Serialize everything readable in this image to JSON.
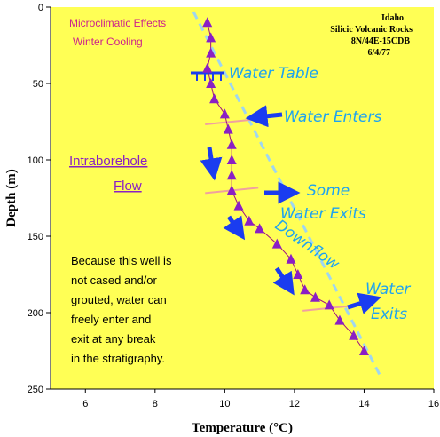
{
  "chart_data": {
    "type": "scatter",
    "title": "",
    "xlabel": "Temperature (°C)",
    "ylabel": "Depth (m)",
    "xlim": [
      5,
      16
    ],
    "ylim": [
      0,
      250
    ],
    "y_inverted": true,
    "x_ticks": [
      6,
      8,
      10,
      12,
      14,
      16
    ],
    "y_ticks": [
      0,
      50,
      100,
      150,
      200,
      250
    ],
    "grid": false,
    "series": [
      {
        "marker": "triangle",
        "color": "#8a1fc4",
        "points": [
          {
            "x": 9.5,
            "y": 10
          },
          {
            "x": 9.6,
            "y": 20
          },
          {
            "x": 9.6,
            "y": 30
          },
          {
            "x": 9.5,
            "y": 40
          },
          {
            "x": 9.6,
            "y": 50
          },
          {
            "x": 9.7,
            "y": 60
          },
          {
            "x": 10.0,
            "y": 70
          },
          {
            "x": 10.1,
            "y": 80
          },
          {
            "x": 10.2,
            "y": 90
          },
          {
            "x": 10.2,
            "y": 100
          },
          {
            "x": 10.2,
            "y": 110
          },
          {
            "x": 10.2,
            "y": 120
          },
          {
            "x": 10.4,
            "y": 130
          },
          {
            "x": 10.7,
            "y": 140
          },
          {
            "x": 11.0,
            "y": 145
          },
          {
            "x": 11.5,
            "y": 155
          },
          {
            "x": 11.9,
            "y": 165
          },
          {
            "x": 12.1,
            "y": 175
          },
          {
            "x": 12.3,
            "y": 185
          },
          {
            "x": 12.6,
            "y": 190
          },
          {
            "x": 13.0,
            "y": 195
          },
          {
            "x": 13.3,
            "y": 205
          },
          {
            "x": 13.7,
            "y": 215
          },
          {
            "x": 14.0,
            "y": 225
          }
        ]
      }
    ],
    "reference_line": {
      "color": "#9fd6f0",
      "dashed": true,
      "from": {
        "x": 9.1,
        "y": 3
      },
      "to": {
        "x": 14.5,
        "y": 243
      }
    },
    "water_table_depth": 43,
    "break_marks": [
      {
        "x": 10.2,
        "y": 75,
        "color": "#f0a0a0"
      },
      {
        "x": 10.2,
        "y": 120,
        "color": "#f0a0a0"
      },
      {
        "x": 13.0,
        "y": 197,
        "color": "#f0a0a0"
      }
    ]
  },
  "annotations": {
    "micro_line1": "Microclimatic Effects",
    "micro_line2": "Winter Cooling",
    "site_line1": "Idaho",
    "site_line2": "Silicic Volcanic Rocks",
    "site_line3": "8N/44E-15CDB",
    "site_line4": "6/4/77",
    "water_table": "Water Table",
    "water_enters": "Water Enters",
    "some_line1": "Some",
    "some_line2": "Water Exits",
    "downflow": "Downflow",
    "water_exits_line1": "Water",
    "water_exits_line2": "Exits",
    "intra_line1": "Intraborehole",
    "intra_line2": "Flow",
    "note_lines": [
      "Because this well is",
      "not cased and/or",
      "grouted, water can",
      "freely enter and",
      "exit at any break",
      "in the stratigraphy."
    ]
  },
  "colors": {
    "plot_bg": "#ffff55",
    "marker": "#8a1fc4",
    "arrow": "#1a3cf0",
    "reference": "#9fd6f0",
    "annotation_blue": "#1ea3f0",
    "micro": "#cc1f8c"
  }
}
